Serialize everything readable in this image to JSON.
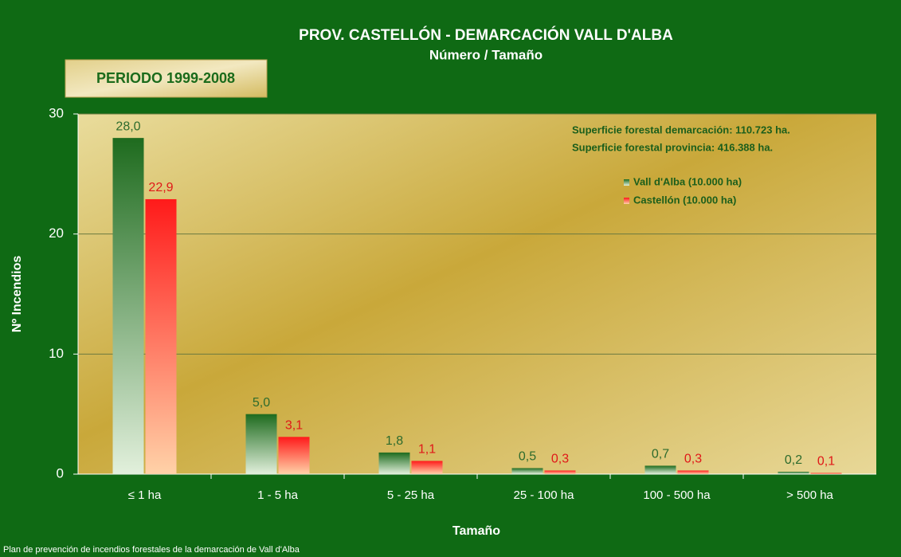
{
  "chart_data": {
    "type": "bar",
    "title": "PROV. CASTELLÓN - DEMARCACIÓN VALL D'ALBA",
    "subtitle": "Número / Tamaño",
    "period": "PERIODO 1999-2008",
    "annotations": [
      "Superficie forestal demarcación: 110.723 ha.",
      "Superficie forestal provincia: 416.388 ha."
    ],
    "x_label": "Tamaño",
    "y_label": "Nº Incendios",
    "footer": "Plan de prevención de incendios forestales de la demarcación de Vall d'Alba",
    "categories": [
      "≤ 1 ha",
      "1 - 5 ha",
      "5 - 25 ha",
      "25 - 100 ha",
      "100 - 500 ha",
      "> 500 ha"
    ],
    "series": [
      {
        "name": "Vall d'Alba (10.000 ha)",
        "color": "#1e6b1e",
        "values": [
          28.0,
          5.0,
          1.8,
          0.5,
          0.7,
          0.2
        ],
        "value_labels": [
          "28,0",
          "5,0",
          "1,8",
          "0,5",
          "0,7",
          "0,2"
        ]
      },
      {
        "name": "Castellón (10.000 ha)",
        "color": "#ff1a1a",
        "values": [
          22.9,
          3.1,
          1.1,
          0.3,
          0.3,
          0.1
        ],
        "value_labels": [
          "22,9",
          "3,1",
          "1,1",
          "0,3",
          "0,3",
          "0,1"
        ]
      }
    ],
    "ylim": [
      0,
      30
    ],
    "yticks": [
      0,
      10,
      20,
      30
    ],
    "grid": true
  }
}
